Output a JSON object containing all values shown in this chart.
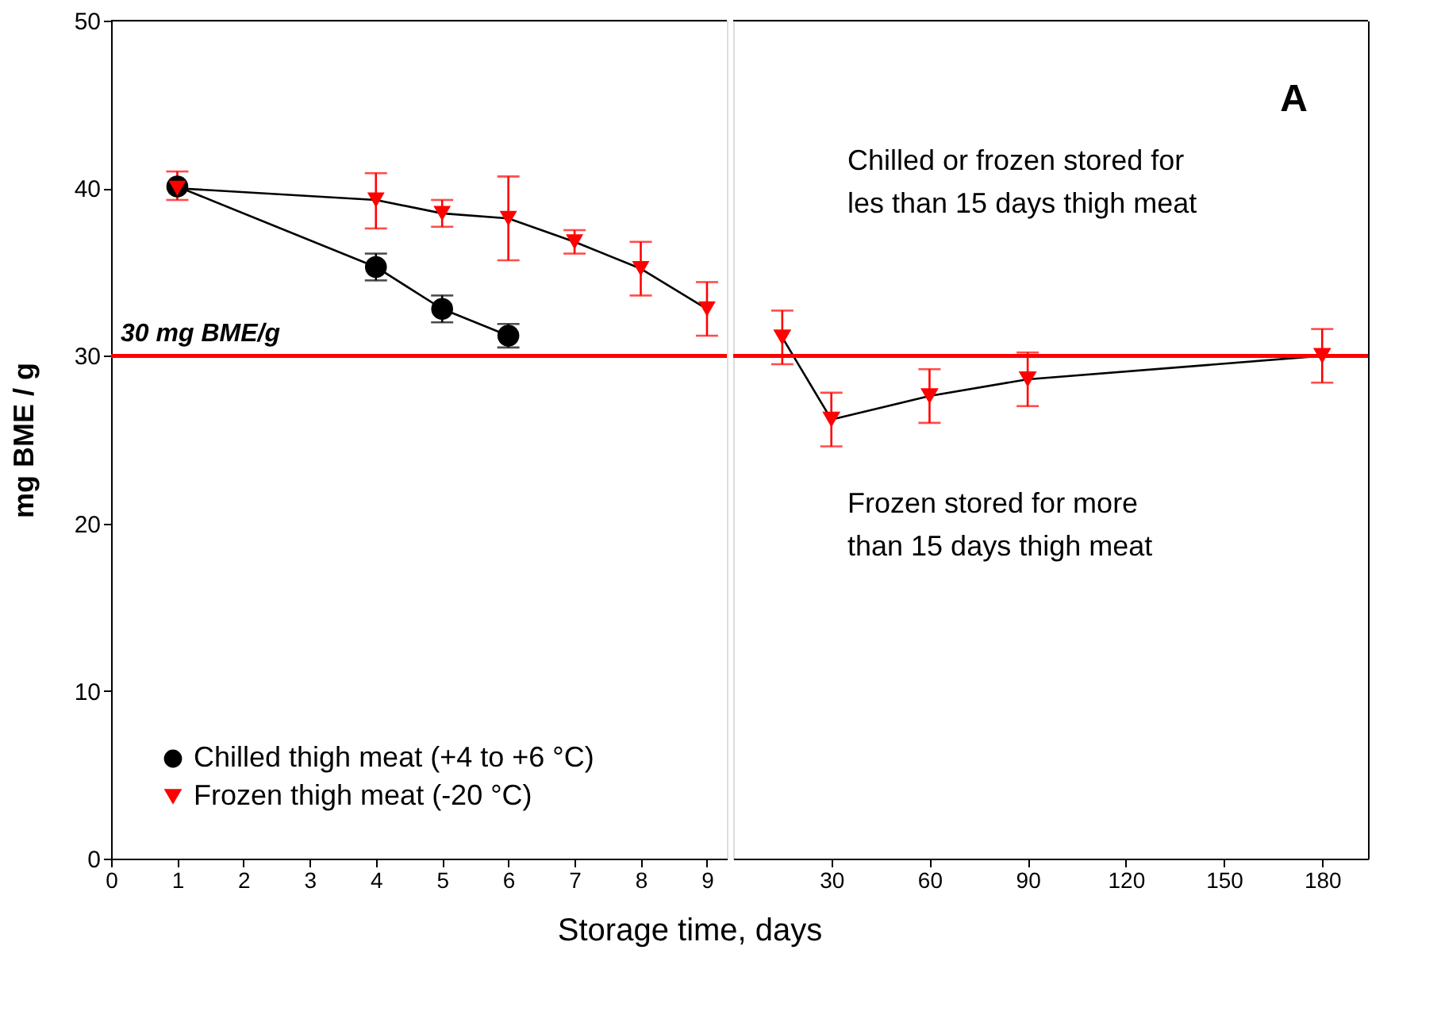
{
  "chart_data": [
    {
      "type": "line",
      "ylabel": "mg BME / g",
      "xlabel": "Storage time, days",
      "xlim": [
        0,
        9.3
      ],
      "xticks": [
        0,
        1,
        2,
        3,
        4,
        5,
        6,
        7,
        8,
        9
      ],
      "ylim": [
        0,
        50
      ],
      "yticks": [
        0,
        10,
        20,
        30,
        40,
        50
      ],
      "grid": false,
      "legend": "bottom left",
      "line_style": "solid",
      "ref_lines": [
        {
          "axis": "y",
          "value": 30,
          "label": "30 mg BME/g",
          "color": "#ff0000"
        }
      ],
      "series": [
        {
          "name": "Chilled thigh meat (+4 to +6 °C)",
          "color": "#000000",
          "marker": "circle",
          "x": [
            1,
            4,
            5,
            6
          ],
          "values": [
            40.1,
            35.3,
            32.8,
            31.2
          ],
          "errors": [
            null,
            0.8,
            0.8,
            0.7
          ]
        },
        {
          "name": "Frozen thigh meat (-20 °C)",
          "color": "#ff0000",
          "marker": "triangle",
          "x": [
            1,
            4,
            5,
            6,
            7,
            8,
            9
          ],
          "values": [
            40.0,
            39.3,
            38.5,
            38.2,
            36.8,
            35.2,
            32.8
          ],
          "errors": [
            [
              39.3,
              41.0
            ],
            [
              37.6,
              40.9
            ],
            0.8,
            [
              35.7,
              40.7
            ],
            0.7,
            1.6,
            1.6
          ]
        }
      ]
    },
    {
      "type": "line",
      "xlim": [
        0,
        194
      ],
      "xticks": [
        30,
        60,
        90,
        120,
        150,
        180
      ],
      "ylim": [
        0,
        50
      ],
      "tick_labels": "x",
      "grid": false,
      "line_style": "solid",
      "annotations": [
        "A",
        "Chilled or frozen stored for les than 15 days thigh meat",
        "Frozen stored for more than 15 days thigh meat"
      ],
      "ref_lines": [
        {
          "axis": "y",
          "value": 30,
          "color": "#ff0000"
        }
      ],
      "series": [
        {
          "color": "#ff0000",
          "marker": "triangle",
          "x": [
            15,
            30,
            60,
            90,
            180
          ],
          "values": [
            31.1,
            26.2,
            27.6,
            28.6,
            30.0
          ],
          "errors": [
            1.6,
            1.6,
            1.6,
            1.6,
            1.6
          ]
        }
      ]
    }
  ]
}
